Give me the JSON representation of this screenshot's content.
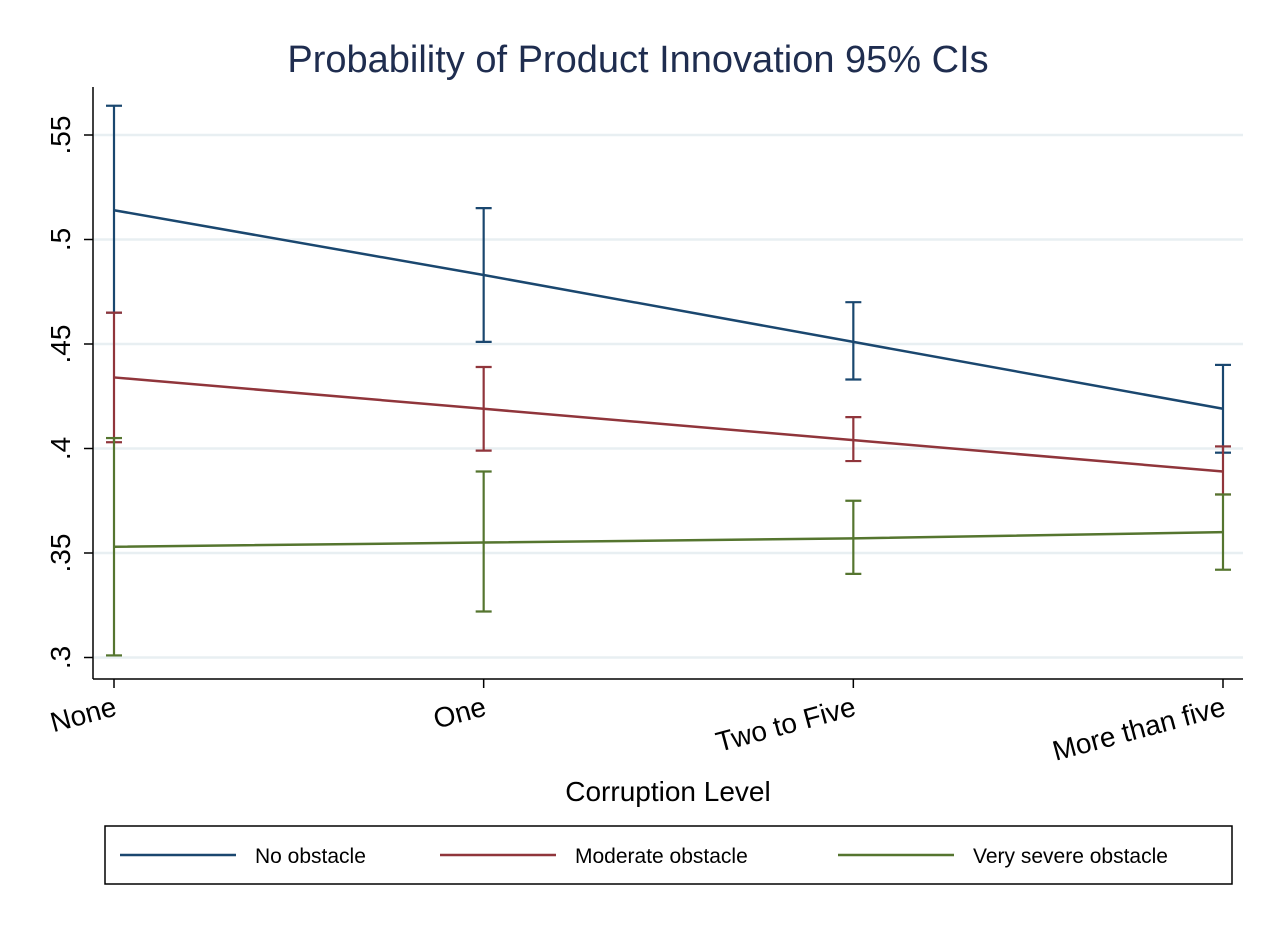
{
  "chart_data": {
    "type": "line",
    "title": "Probability of Product Innovation 95% CIs",
    "xlabel": "Corruption Level",
    "ylabel": "",
    "categories": [
      "None",
      "One",
      "Two to Five",
      "More than five"
    ],
    "ylim": [
      0.29,
      0.575
    ],
    "yticks": [
      {
        "value": 0.3,
        "label": ".3"
      },
      {
        "value": 0.35,
        "label": ".35"
      },
      {
        "value": 0.4,
        "label": ".4"
      },
      {
        "value": 0.45,
        "label": ".45"
      },
      {
        "value": 0.5,
        "label": ".5"
      },
      {
        "value": 0.55,
        "label": ".55"
      }
    ],
    "grid": true,
    "legend_position": "bottom",
    "series": [
      {
        "name": "No obstacle",
        "color": "#1a476f",
        "values": [
          0.514,
          0.483,
          0.451,
          0.419
        ],
        "ci_low": [
          0.465,
          0.451,
          0.433,
          0.398
        ],
        "ci_high": [
          0.564,
          0.515,
          0.47,
          0.44
        ]
      },
      {
        "name": "Moderate obstacle",
        "color": "#90353b",
        "values": [
          0.434,
          0.419,
          0.404,
          0.389
        ],
        "ci_low": [
          0.403,
          0.399,
          0.394,
          0.378
        ],
        "ci_high": [
          0.465,
          0.439,
          0.415,
          0.401
        ]
      },
      {
        "name": "Very severe obstacle",
        "color": "#55752f",
        "values": [
          0.353,
          0.355,
          0.357,
          0.36
        ],
        "ci_low": [
          0.301,
          0.322,
          0.34,
          0.342
        ],
        "ci_high": [
          0.405,
          0.389,
          0.375,
          0.378
        ]
      }
    ]
  }
}
